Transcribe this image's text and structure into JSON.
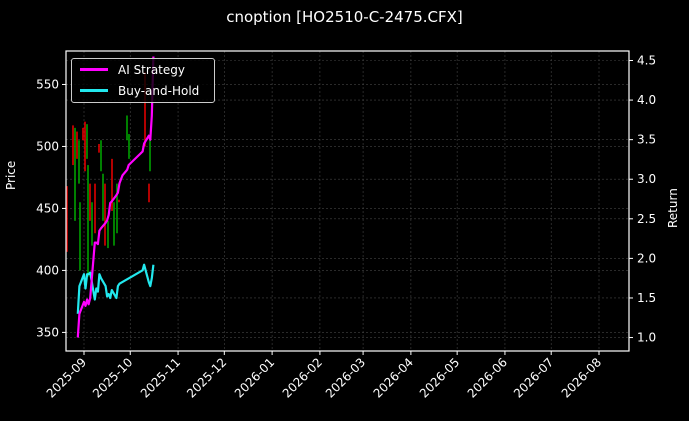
{
  "chart_data": {
    "type": "line",
    "title": "cnoption [HO2510-C-2475.CFX]",
    "xlabel": "",
    "ylabel_left": "Price",
    "ylabel_right": "Return",
    "ylim_left": [
      335,
      577
    ],
    "ylim_right": [
      0.83,
      4.62
    ],
    "yticks_left": [
      350,
      400,
      450,
      500,
      550
    ],
    "yticks_right": [
      "1.0",
      "1.5",
      "2.0",
      "2.5",
      "3.0",
      "3.5",
      "4.0",
      "4.5"
    ],
    "xticks": [
      "2025-09",
      "2025-10",
      "2025-11",
      "2025-12",
      "2026-01",
      "2026-02",
      "2026-03",
      "2026-04",
      "2026-05",
      "2026-06",
      "2026-07",
      "2026-08"
    ],
    "grid": true,
    "legend_position": "upper left",
    "series": [
      {
        "name": "AI Strategy",
        "color": "#ff00ff",
        "axis": "right",
        "points": [
          [
            "2025-08-28",
            1.0
          ],
          [
            "2025-08-29",
            1.3
          ],
          [
            "2025-09-01",
            1.45
          ],
          [
            "2025-09-02",
            1.4
          ],
          [
            "2025-09-03",
            1.48
          ],
          [
            "2025-09-04",
            1.42
          ],
          [
            "2025-09-05",
            1.5
          ],
          [
            "2025-09-08",
            2.2
          ],
          [
            "2025-09-09",
            2.2
          ],
          [
            "2025-09-10",
            2.18
          ],
          [
            "2025-09-11",
            2.35
          ],
          [
            "2025-09-12",
            2.38
          ],
          [
            "2025-09-15",
            2.45
          ],
          [
            "2025-09-16",
            2.48
          ],
          [
            "2025-09-17",
            2.55
          ],
          [
            "2025-09-18",
            2.7
          ],
          [
            "2025-09-19",
            2.72
          ],
          [
            "2025-09-22",
            2.8
          ],
          [
            "2025-09-23",
            2.83
          ],
          [
            "2025-09-24",
            2.95
          ],
          [
            "2025-09-25",
            3.0
          ],
          [
            "2025-09-26",
            3.05
          ],
          [
            "2025-09-29",
            3.12
          ],
          [
            "2025-09-30",
            3.18
          ],
          [
            "2025-10-09",
            3.35
          ],
          [
            "2025-10-10",
            3.45
          ],
          [
            "2025-10-13",
            3.55
          ],
          [
            "2025-10-14",
            3.5
          ],
          [
            "2025-10-15",
            3.8
          ],
          [
            "2025-10-16",
            4.55
          ]
        ]
      },
      {
        "name": "Buy-and-Hold",
        "color": "#22e8ee",
        "axis": "right",
        "points": [
          [
            "2025-08-28",
            1.3
          ],
          [
            "2025-08-29",
            1.65
          ],
          [
            "2025-09-01",
            1.8
          ],
          [
            "2025-09-02",
            1.62
          ],
          [
            "2025-09-03",
            1.8
          ],
          [
            "2025-09-04",
            1.8
          ],
          [
            "2025-09-05",
            1.82
          ],
          [
            "2025-09-08",
            1.48
          ],
          [
            "2025-09-09",
            1.62
          ],
          [
            "2025-09-10",
            1.58
          ],
          [
            "2025-09-11",
            1.8
          ],
          [
            "2025-09-12",
            1.75
          ],
          [
            "2025-09-15",
            1.65
          ],
          [
            "2025-09-16",
            1.52
          ],
          [
            "2025-09-17",
            1.55
          ],
          [
            "2025-09-18",
            1.5
          ],
          [
            "2025-09-19",
            1.6
          ],
          [
            "2025-09-22",
            1.5
          ],
          [
            "2025-09-23",
            1.65
          ],
          [
            "2025-09-24",
            1.68
          ],
          [
            "2025-10-09",
            1.85
          ],
          [
            "2025-10-10",
            1.92
          ],
          [
            "2025-10-13",
            1.7
          ],
          [
            "2025-10-14",
            1.65
          ],
          [
            "2025-10-15",
            1.75
          ],
          [
            "2025-10-16",
            1.92
          ]
        ]
      }
    ],
    "candles": {
      "axis": "left",
      "up_color": "#00a000",
      "down_color": "#e00000",
      "items": [
        {
          "x": 67,
          "low": 415,
          "high": 468,
          "dir": "down"
        },
        {
          "x": 73,
          "low": 485,
          "high": 517,
          "dir": "down"
        },
        {
          "x": 75,
          "low": 440,
          "high": 515,
          "dir": "up"
        },
        {
          "x": 77,
          "low": 490,
          "high": 512,
          "dir": "down"
        },
        {
          "x": 79,
          "low": 470,
          "high": 505,
          "dir": "up"
        },
        {
          "x": 80,
          "low": 400,
          "high": 455,
          "dir": "up"
        },
        {
          "x": 83,
          "low": 505,
          "high": 515,
          "dir": "down"
        },
        {
          "x": 85,
          "low": 480,
          "high": 520,
          "dir": "down"
        },
        {
          "x": 87,
          "low": 490,
          "high": 518,
          "dir": "up"
        },
        {
          "x": 88,
          "low": 395,
          "high": 485,
          "dir": "up"
        },
        {
          "x": 90,
          "low": 440,
          "high": 470,
          "dir": "down"
        },
        {
          "x": 92,
          "low": 420,
          "high": 455,
          "dir": "up"
        },
        {
          "x": 95,
          "low": 430,
          "high": 470,
          "dir": "down"
        },
        {
          "x": 99,
          "low": 495,
          "high": 502,
          "dir": "down"
        },
        {
          "x": 101,
          "low": 480,
          "high": 505,
          "dir": "up"
        },
        {
          "x": 103,
          "low": 440,
          "high": 478,
          "dir": "up"
        },
        {
          "x": 105,
          "low": 420,
          "high": 470,
          "dir": "down"
        },
        {
          "x": 108,
          "low": 418,
          "high": 440,
          "dir": "up"
        },
        {
          "x": 112,
          "low": 448,
          "high": 490,
          "dir": "down"
        },
        {
          "x": 114,
          "low": 420,
          "high": 455,
          "dir": "up"
        },
        {
          "x": 117,
          "low": 430,
          "high": 470,
          "dir": "up"
        },
        {
          "x": 119,
          "low": 455,
          "high": 457,
          "dir": "down"
        },
        {
          "x": 127,
          "low": 505,
          "high": 525,
          "dir": "up"
        },
        {
          "x": 129,
          "low": 490,
          "high": 510,
          "dir": "up"
        },
        {
          "x": 145,
          "low": 500,
          "high": 560,
          "dir": "down"
        },
        {
          "x": 150,
          "low": 480,
          "high": 508,
          "dir": "up"
        },
        {
          "x": 149,
          "low": 455,
          "high": 470,
          "dir": "down"
        }
      ]
    }
  }
}
